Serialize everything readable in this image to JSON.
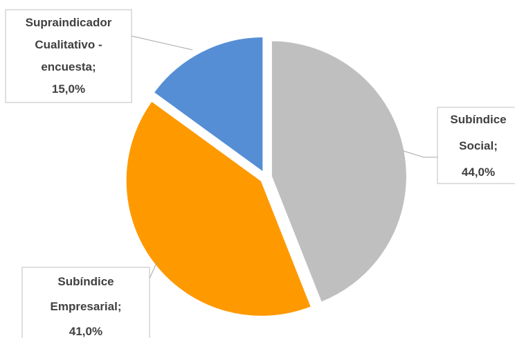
{
  "chart_data": {
    "type": "pie",
    "categories": [
      "Subíndice Social",
      "Subíndice Empresarial",
      "Supraindicador Cualitativo - encuesta"
    ],
    "values": [
      44.0,
      41.0,
      15.0
    ],
    "colors": [
      "#bfbfbf",
      "#ff9900",
      "#558ed5"
    ],
    "start_angle_deg": 0,
    "direction": "clockwise",
    "exploded": true,
    "legend": "none",
    "data_labels": [
      {
        "lines": [
          "Subíndice",
          "Social;",
          "44,0%"
        ]
      },
      {
        "lines": [
          "Subíndice",
          "Empresarial;",
          "41,0%"
        ]
      },
      {
        "lines": [
          "Supraindicador",
          "Cualitativo -",
          "encuesta;",
          "15,0%"
        ]
      }
    ]
  }
}
